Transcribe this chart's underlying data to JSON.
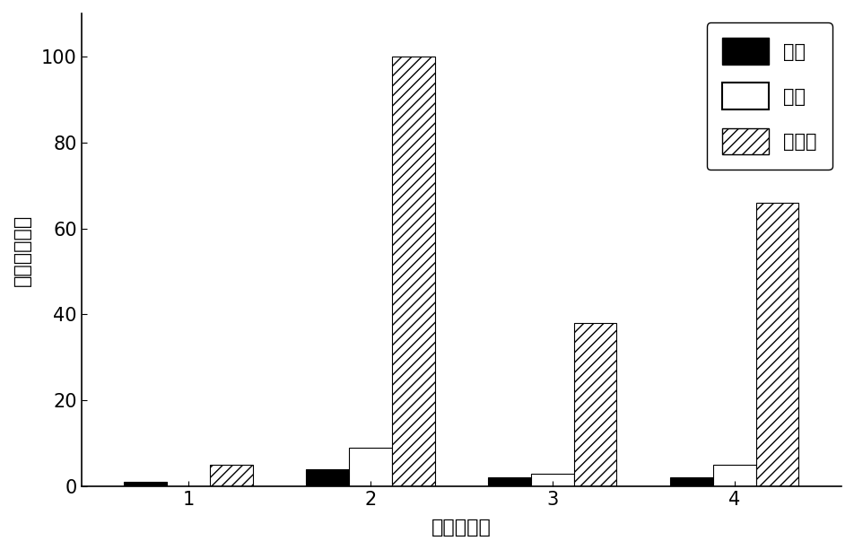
{
  "categories": [
    "1",
    "2",
    "3",
    "4"
  ],
  "series": {
    "乙腼": [
      1,
      4,
      2,
      2
    ],
    "甲苯": [
      0,
      9,
      3,
      5
    ],
    "异辛烷": [
      5,
      100,
      38,
      66
    ]
  },
  "title": "",
  "xlabel": "荧光衍生物",
  "ylabel": "相对荧光强度",
  "ylim": [
    0,
    110
  ],
  "yticks": [
    0,
    20,
    40,
    60,
    80,
    100
  ],
  "legend_labels": [
    "乙腼",
    "甲苯",
    "异辛烷"
  ],
  "figsize": [
    9.53,
    6.13
  ],
  "dpi": 100
}
